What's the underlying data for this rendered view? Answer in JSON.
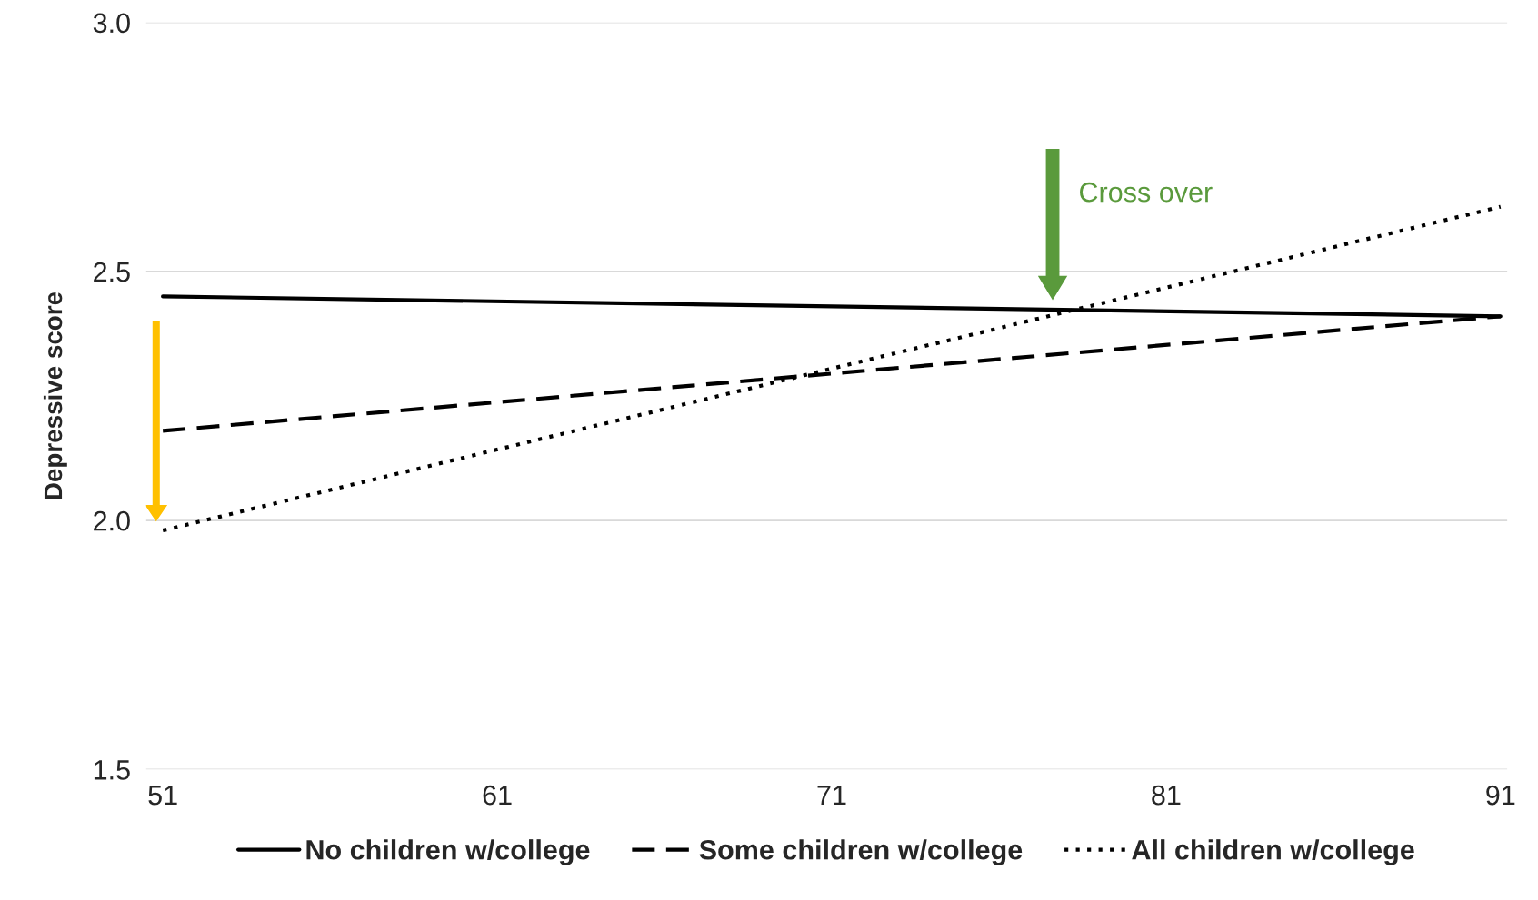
{
  "chart_data": {
    "type": "line",
    "ylabel": "Depressive score",
    "x": [
      51,
      91
    ],
    "series": [
      {
        "name": "No children w/college",
        "color": "#000000",
        "values": [
          2.45,
          2.41
        ],
        "line_style": "solid"
      },
      {
        "name": "Some children w/college",
        "color": "#000000",
        "values": [
          2.18,
          2.41
        ],
        "line_style": "dashed"
      },
      {
        "name": "All children w/college",
        "color": "#000000",
        "values": [
          1.98,
          2.63
        ],
        "line_style": "dotted"
      }
    ],
    "xlim": [
      50.5,
      91.2
    ],
    "xticks": [
      51,
      61,
      71,
      81,
      91
    ],
    "ylim": [
      1.5,
      3.0
    ],
    "yticks": [
      {
        "value": 1.5,
        "label": "1.5"
      },
      {
        "value": 2.0,
        "label": "2.0"
      },
      {
        "value": 2.5,
        "label": "2.5"
      },
      {
        "value": 3.0,
        "label": "3.0"
      }
    ],
    "grid": "y",
    "legend": "bottom",
    "marker": "none",
    "annotations": [
      "Cross over"
    ]
  }
}
